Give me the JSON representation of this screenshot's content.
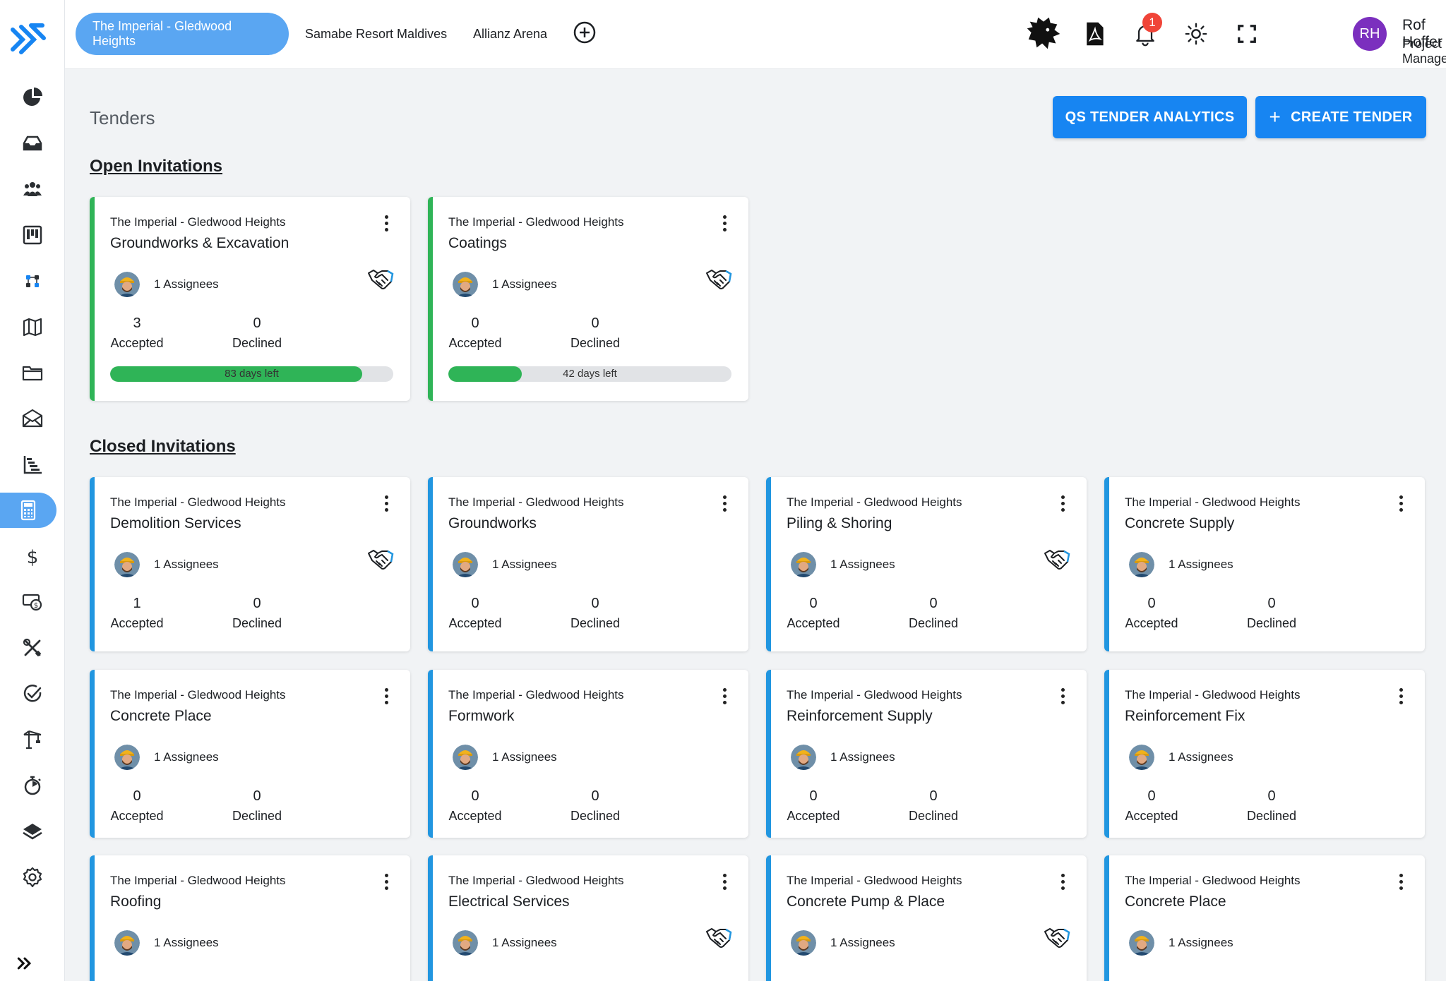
{
  "topbar": {
    "tabs": [
      "The Imperial - Gledwood Heights",
      "Samabe Resort Maldives",
      "Allianz Arena"
    ],
    "notification_count": "1",
    "user_initials": "RH",
    "user_name": "Rof Hoffer",
    "user_role": "Project Manager"
  },
  "sidebar": {
    "items": [
      "dashboard-pie",
      "inbox",
      "team",
      "board",
      "workflow",
      "map",
      "folder",
      "mail",
      "gantt",
      "calculator",
      "dollar",
      "payment",
      "tools",
      "check",
      "crane",
      "timer",
      "layers",
      "settings"
    ],
    "active": "calculator"
  },
  "page": {
    "title": "Tenders",
    "analytics_button": "QS TENDER ANALYTICS",
    "create_button": "CREATE TENDER",
    "create_plus": "+",
    "open_section": "Open Invitations",
    "closed_section": "Closed Invitations"
  },
  "labels": {
    "accepted": "Accepted",
    "declined": "Declined"
  },
  "open_cards": [
    {
      "project": "The Imperial - Gledwood Heights",
      "name": "Groundworks & Excavation",
      "assignees": "1 Assignees",
      "accepted": "3",
      "declined": "0",
      "days_left": "83 days left",
      "progress": 0.89,
      "handshake": true
    },
    {
      "project": "The Imperial - Gledwood Heights",
      "name": "Coatings",
      "assignees": "1 Assignees",
      "accepted": "0",
      "declined": "0",
      "days_left": "42 days left",
      "progress": 0.26,
      "handshake": true
    }
  ],
  "closed_cards": [
    {
      "project": "The Imperial - Gledwood Heights",
      "name": "Demolition Services",
      "assignees": "1 Assignees",
      "accepted": "1",
      "declined": "0",
      "handshake": true
    },
    {
      "project": "The Imperial - Gledwood Heights",
      "name": "Groundworks",
      "assignees": "1 Assignees",
      "accepted": "0",
      "declined": "0",
      "handshake": false
    },
    {
      "project": "The Imperial - Gledwood Heights",
      "name": "Piling & Shoring",
      "assignees": "1 Assignees",
      "accepted": "0",
      "declined": "0",
      "handshake": true
    },
    {
      "project": "The Imperial - Gledwood Heights",
      "name": "Concrete Supply",
      "assignees": "1 Assignees",
      "accepted": "0",
      "declined": "0",
      "handshake": false
    },
    {
      "project": "The Imperial - Gledwood Heights",
      "name": "Concrete Place",
      "assignees": "1 Assignees",
      "accepted": "0",
      "declined": "0",
      "handshake": false
    },
    {
      "project": "The Imperial - Gledwood Heights",
      "name": "Formwork",
      "assignees": "1 Assignees",
      "accepted": "0",
      "declined": "0",
      "handshake": false
    },
    {
      "project": "The Imperial - Gledwood Heights",
      "name": "Reinforcement Supply",
      "assignees": "1 Assignees",
      "accepted": "0",
      "declined": "0",
      "handshake": false
    },
    {
      "project": "The Imperial - Gledwood Heights",
      "name": "Reinforcement Fix",
      "assignees": "1 Assignees",
      "accepted": "0",
      "declined": "0",
      "handshake": false
    },
    {
      "project": "The Imperial - Gledwood Heights",
      "name": "Roofing",
      "assignees": "1 Assignees",
      "handshake": false
    },
    {
      "project": "The Imperial - Gledwood Heights",
      "name": "Electrical Services",
      "assignees": "1 Assignees",
      "handshake": true
    },
    {
      "project": "The Imperial - Gledwood Heights",
      "name": "Concrete Pump & Place",
      "assignees": "1 Assignees",
      "handshake": true
    },
    {
      "project": "The Imperial - Gledwood Heights",
      "name": "Concrete Place",
      "assignees": "1 Assignees",
      "handshake": false
    }
  ],
  "colors": {
    "primary": "#1785f2",
    "active_tab": "#5aa6f2",
    "open_accent": "#2fb457",
    "closed_accent": "#2196e0",
    "avatar": "#7b2fbe",
    "badge": "#f04438"
  }
}
